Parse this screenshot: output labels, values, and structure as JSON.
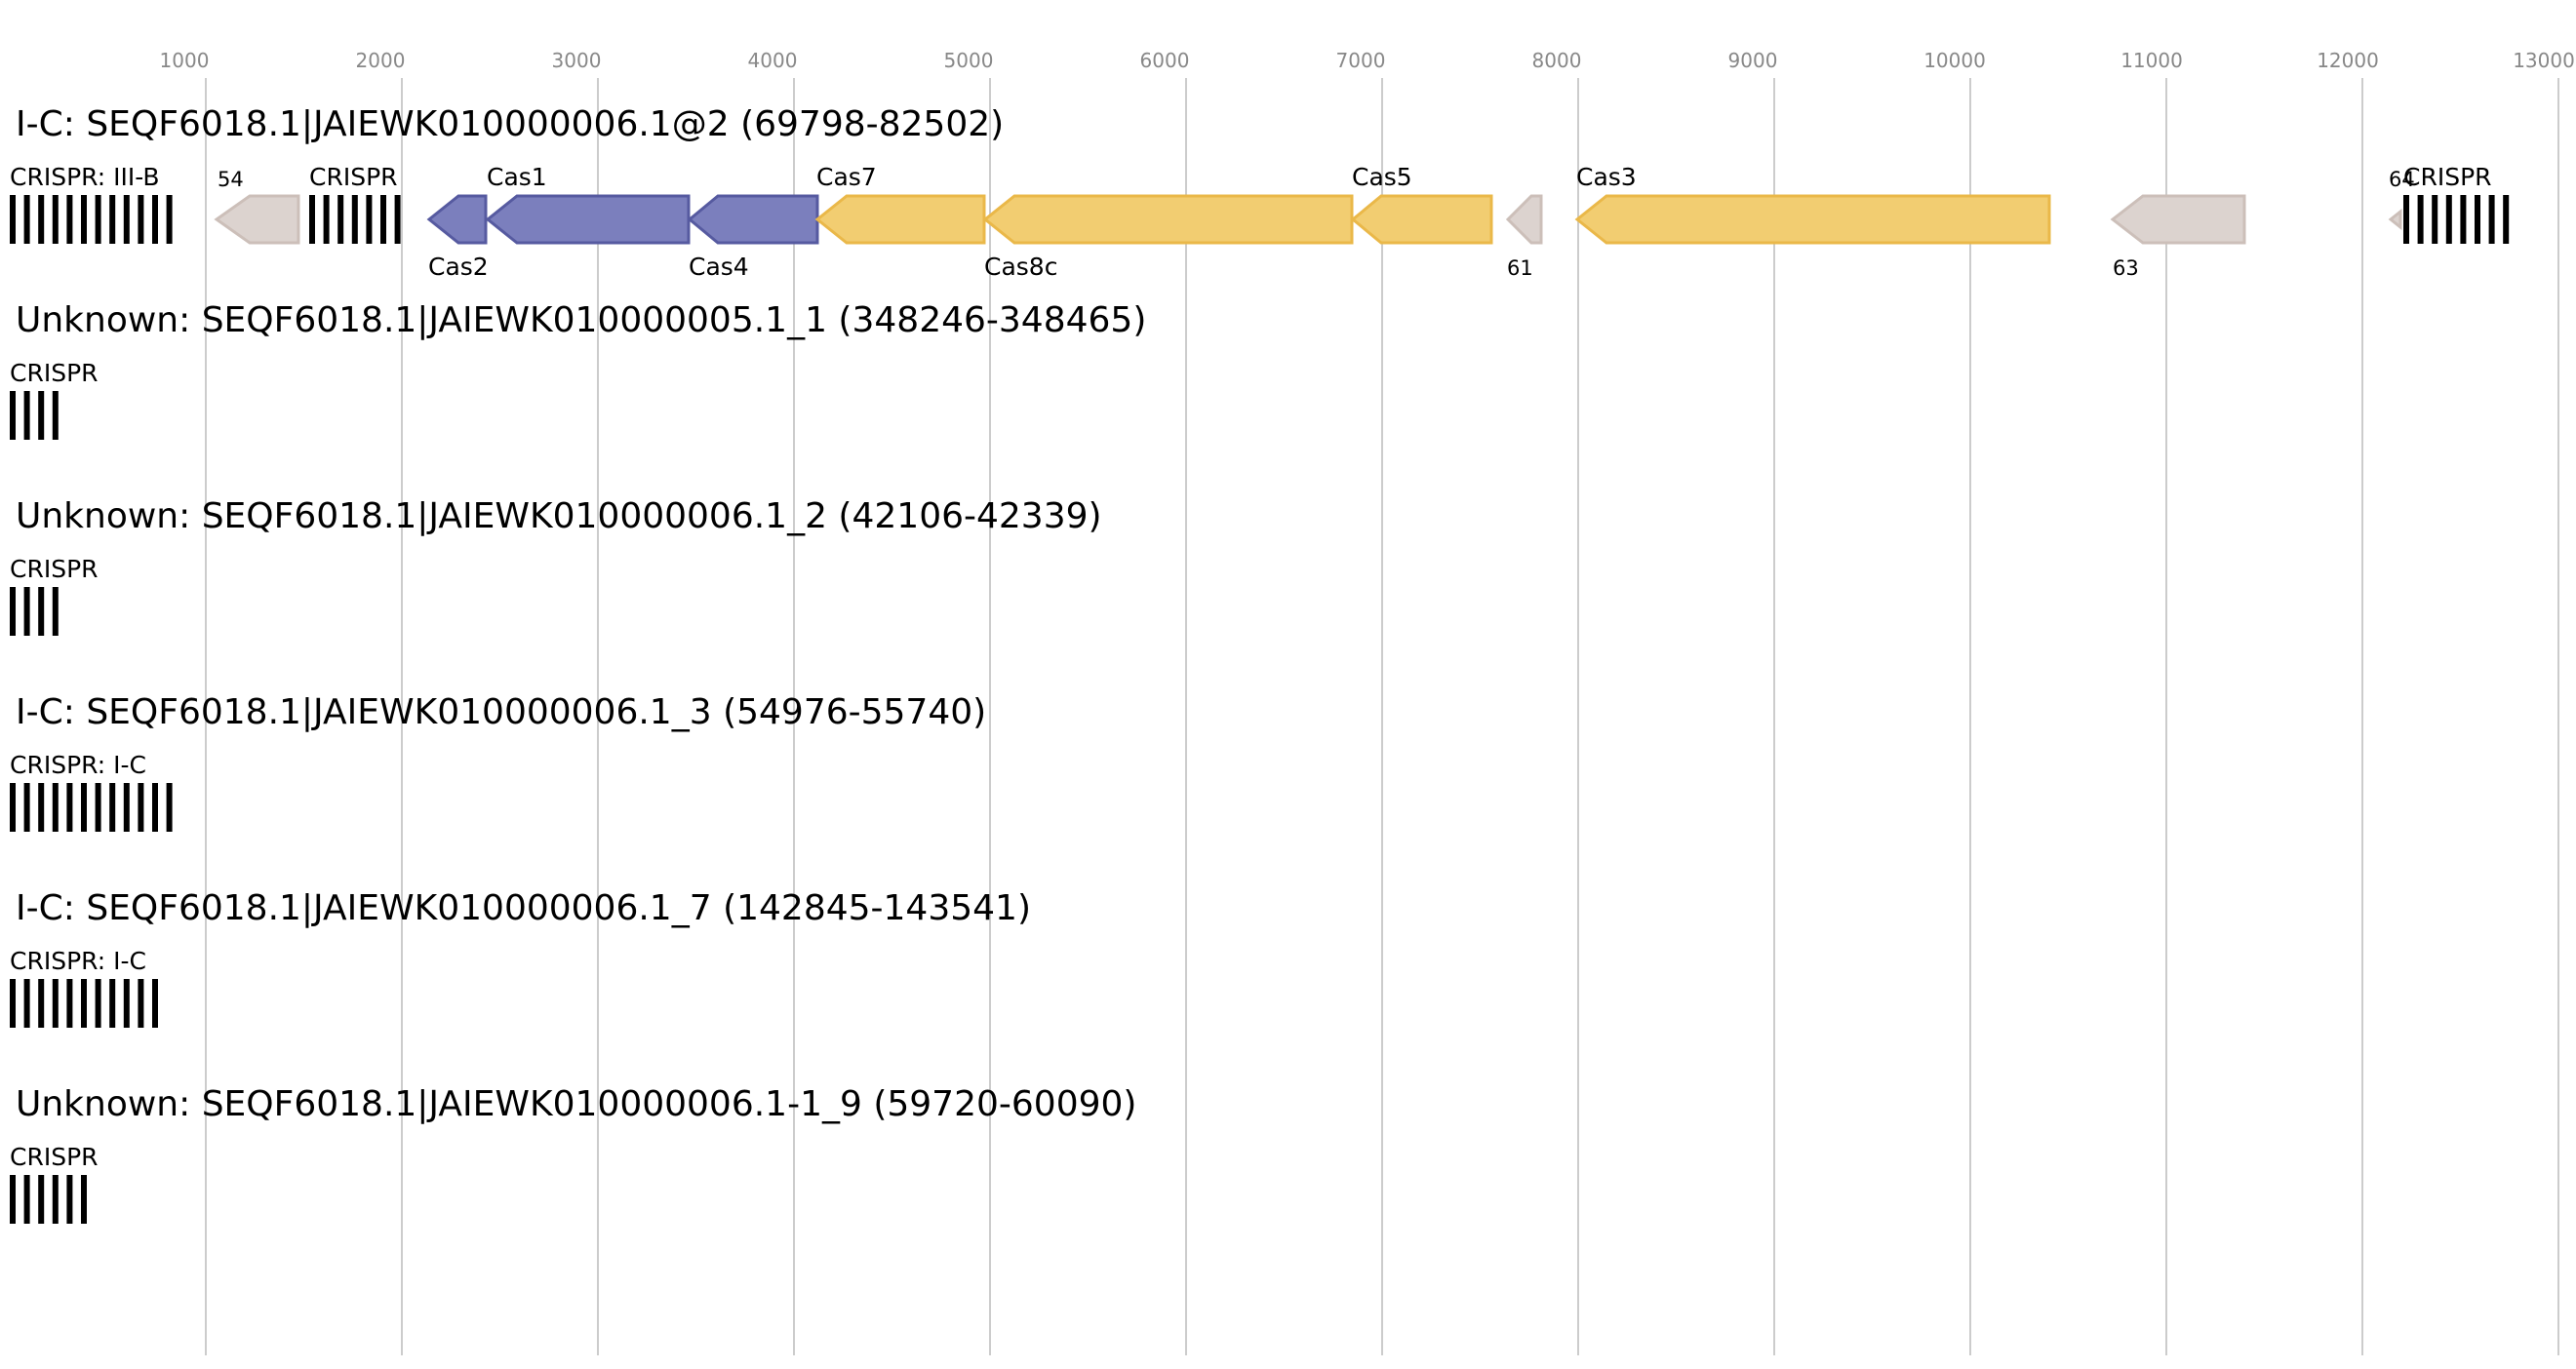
{
  "axis": {
    "ticks": [
      "1000",
      "2000",
      "3000",
      "4000",
      "5000",
      "6000",
      "7000",
      "8000",
      "9000",
      "10000",
      "11000",
      "12000",
      "13000"
    ],
    "tick_color": "#888888",
    "gridline_color": "#bbbbbb"
  },
  "colors": {
    "cas_blue": "#7b7fbd",
    "cas_blue_stroke": "#565aa0",
    "cas_yellow": "#f2cd71",
    "cas_yellow_stroke": "#eab849",
    "other_gene": "#dcd3cf",
    "other_gene_stroke": "#ccbfb9",
    "crispr_bar": "#000000"
  },
  "loci": [
    {
      "title": "I-C: SEQF6018.1|JAIEWK010000006.1@2 (69798-82502)",
      "crispr_arrays": [
        {
          "label": "CRISPR: III-B",
          "repeats": 12
        },
        {
          "label": "CRISPR",
          "repeats": 7
        },
        {
          "label": "CRISPR",
          "repeats": 8
        }
      ],
      "genes": [
        {
          "label": "54",
          "kind": "other"
        },
        {
          "label": "Cas2",
          "kind": "blue"
        },
        {
          "label": "Cas1",
          "kind": "blue"
        },
        {
          "label": "Cas4",
          "kind": "blue"
        },
        {
          "label": "Cas7",
          "kind": "yellow"
        },
        {
          "label": "Cas8c",
          "kind": "yellow"
        },
        {
          "label": "Cas5",
          "kind": "yellow"
        },
        {
          "label": "61",
          "kind": "other"
        },
        {
          "label": "Cas3",
          "kind": "yellow"
        },
        {
          "label": "63",
          "kind": "other"
        },
        {
          "label": "64",
          "kind": "other"
        }
      ]
    },
    {
      "title": "Unknown: SEQF6018.1|JAIEWK010000005.1_1 (348246-348465)",
      "crispr_arrays": [
        {
          "label": "CRISPR",
          "repeats": 4
        }
      ],
      "genes": []
    },
    {
      "title": "Unknown: SEQF6018.1|JAIEWK010000006.1_2 (42106-42339)",
      "crispr_arrays": [
        {
          "label": "CRISPR",
          "repeats": 4
        }
      ],
      "genes": []
    },
    {
      "title": "I-C: SEQF6018.1|JAIEWK010000006.1_3 (54976-55740)",
      "crispr_arrays": [
        {
          "label": "CRISPR: I-C",
          "repeats": 12
        }
      ],
      "genes": []
    },
    {
      "title": "I-C: SEQF6018.1|JAIEWK010000006.1_7 (142845-143541)",
      "crispr_arrays": [
        {
          "label": "CRISPR: I-C",
          "repeats": 11
        }
      ],
      "genes": []
    },
    {
      "title": "Unknown: SEQF6018.1|JAIEWK010000006.1-1_9 (59720-60090)",
      "crispr_arrays": [
        {
          "label": "CRISPR",
          "repeats": 6
        }
      ],
      "genes": []
    }
  ]
}
